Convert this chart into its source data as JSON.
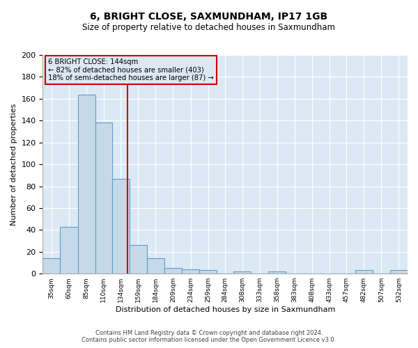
{
  "title": "6, BRIGHT CLOSE, SAXMUNDHAM, IP17 1GB",
  "subtitle": "Size of property relative to detached houses in Saxmundham",
  "xlabel": "Distribution of detached houses by size in Saxmundham",
  "ylabel": "Number of detached properties",
  "bar_labels": [
    "35sqm",
    "60sqm",
    "85sqm",
    "110sqm",
    "134sqm",
    "159sqm",
    "184sqm",
    "209sqm",
    "234sqm",
    "259sqm",
    "284sqm",
    "308sqm",
    "333sqm",
    "358sqm",
    "383sqm",
    "408sqm",
    "433sqm",
    "457sqm",
    "482sqm",
    "507sqm",
    "532sqm"
  ],
  "bar_values": [
    14,
    43,
    164,
    138,
    87,
    26,
    14,
    5,
    4,
    3,
    0,
    2,
    0,
    2,
    0,
    0,
    0,
    0,
    3,
    0,
    3
  ],
  "bin_edges": [
    22.5,
    47.5,
    72.5,
    97.5,
    121.5,
    146.5,
    171.5,
    196.5,
    221.5,
    246.5,
    271.5,
    295.5,
    320.5,
    345.5,
    370.5,
    395.5,
    420.5,
    444.5,
    469.5,
    494.5,
    519.5,
    544.5
  ],
  "bar_color": "#c6d9e8",
  "bar_edge_color": "#5b9ec9",
  "fig_bg_color": "#ffffff",
  "ax_bg_color": "#dce9f5",
  "grid_color": "#ffffff",
  "vline_x": 144,
  "vline_color": "#cc0000",
  "annotation_text": "6 BRIGHT CLOSE: 144sqm\n← 82% of detached houses are smaller (403)\n18% of semi-detached houses are larger (87) →",
  "annotation_box_color": "#cc0000",
  "ylim": [
    0,
    200
  ],
  "yticks": [
    0,
    20,
    40,
    60,
    80,
    100,
    120,
    140,
    160,
    180,
    200
  ],
  "footer1": "Contains HM Land Registry data © Crown copyright and database right 2024.",
  "footer2": "Contains public sector information licensed under the Open Government Licence v3.0."
}
